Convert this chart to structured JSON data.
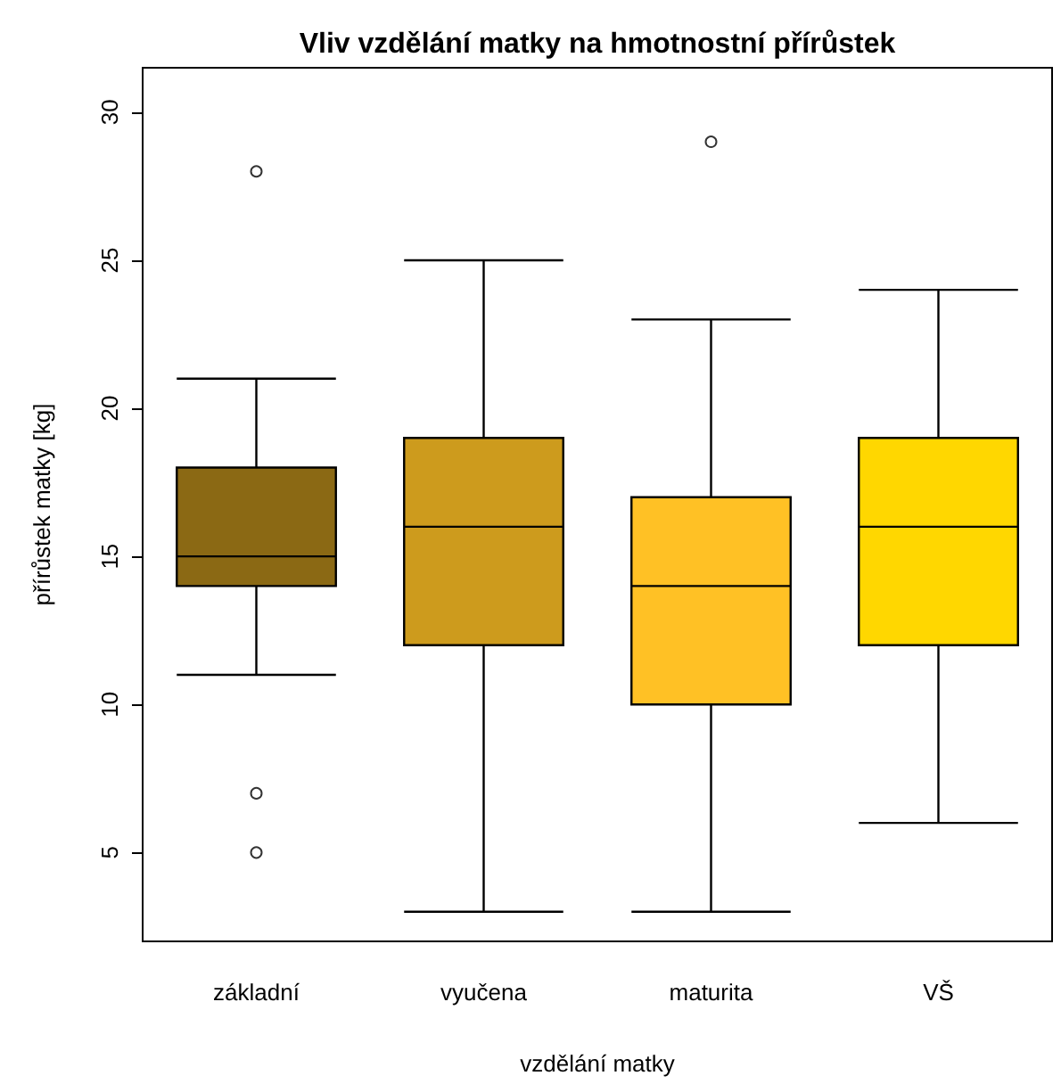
{
  "chart_data": {
    "type": "box",
    "title": "Vliv vzdělání matky na hmotnostní přírůstek",
    "xlabel": "vzdělání matky",
    "ylabel": "přírůstek matky [kg]",
    "categories": [
      "základní",
      "vyučena",
      "maturita",
      "VŠ"
    ],
    "colors": [
      "#8b6914",
      "#cd9b1d",
      "#ffc125",
      "#ffd700"
    ],
    "boxes": [
      {
        "low": 11,
        "q1": 14,
        "median": 15,
        "q3": 18,
        "high": 21,
        "outliers": [
          28,
          7,
          5
        ]
      },
      {
        "low": 3,
        "q1": 12,
        "median": 16,
        "q3": 19,
        "high": 25
      },
      {
        "low": 3,
        "q1": 10,
        "median": 14,
        "q3": 17,
        "high": 23,
        "outliers": [
          29
        ]
      },
      {
        "low": 6,
        "q1": 12,
        "median": 16,
        "q3": 19,
        "high": 24
      }
    ],
    "ylim": [
      2,
      31.5
    ],
    "yticks": [
      5,
      10,
      15,
      20,
      25,
      30
    ]
  }
}
